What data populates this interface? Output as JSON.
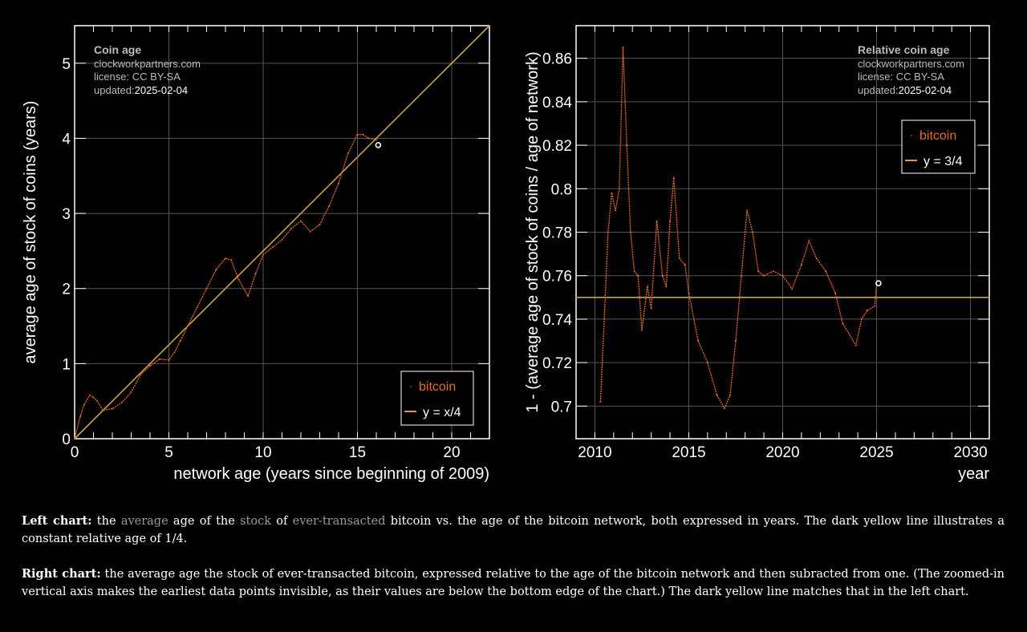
{
  "chart_data": [
    {
      "type": "line",
      "title": "Coin age",
      "annotation": {
        "site": "clockworkpartners.com",
        "license": "license: CC BY-SA",
        "updated_label": "updated:",
        "updated_value": "2025-02-04"
      },
      "xlabel": "network age (years since beginning of 2009)",
      "ylabel": "average age of stock of coins (years)",
      "xlim": [
        0,
        22
      ],
      "ylim": [
        0,
        5.5
      ],
      "xticks": [
        0,
        5,
        10,
        15,
        20
      ],
      "xtick_labels": [
        "0",
        "5",
        "10",
        "15",
        "20"
      ],
      "yticks": [
        0,
        1,
        2,
        3,
        4,
        5
      ],
      "ytick_labels": [
        "0",
        "1",
        "2",
        "3",
        "4",
        "5"
      ],
      "grid": true,
      "legend_position": "bottom-right",
      "series": [
        {
          "name": "bitcoin",
          "color": "#e8692a",
          "x": [
            0,
            0.3,
            0.5,
            0.8,
            1.0,
            1.2,
            1.5,
            2.0,
            2.5,
            3.0,
            3.5,
            4.0,
            4.5,
            5.0,
            5.3,
            5.6,
            6.0,
            6.5,
            7.0,
            7.5,
            8.0,
            8.3,
            8.7,
            9.2,
            9.6,
            10.0,
            10.5,
            11.0,
            11.5,
            12.0,
            12.5,
            13.0,
            13.5,
            14.0,
            14.5,
            15.0,
            15.3,
            15.6,
            16.0
          ],
          "y": [
            0,
            0.3,
            0.45,
            0.58,
            0.55,
            0.5,
            0.38,
            0.4,
            0.48,
            0.62,
            0.85,
            0.97,
            1.06,
            1.05,
            1.15,
            1.3,
            1.5,
            1.75,
            2.0,
            2.25,
            2.4,
            2.38,
            2.12,
            1.9,
            2.2,
            2.45,
            2.55,
            2.65,
            2.8,
            2.9,
            2.76,
            2.85,
            3.1,
            3.4,
            3.8,
            4.05,
            4.05,
            4.0,
            3.98
          ]
        },
        {
          "name": "y = x/4",
          "color": "#c9a24e",
          "x": [
            0,
            22
          ],
          "y": [
            0,
            5.5
          ]
        }
      ],
      "last_point": {
        "x": 16.1,
        "y": 3.91
      }
    },
    {
      "type": "line",
      "title": "Relative coin age",
      "annotation": {
        "site": "clockworkpartners.com",
        "license": "license: CC BY-SA",
        "updated_label": "updated:",
        "updated_value": "2025-02-04"
      },
      "xlabel": "year",
      "ylabel": "1 - (average age of stock of coins / age of network)",
      "xlim": [
        2009,
        2031
      ],
      "ylim": [
        0.685,
        0.875
      ],
      "xticks": [
        2010,
        2015,
        2020,
        2025,
        2030
      ],
      "xtick_labels": [
        "2010",
        "2015",
        "2020",
        "2025",
        "2030"
      ],
      "yticks": [
        0.7,
        0.72,
        0.74,
        0.76,
        0.78,
        0.8,
        0.82,
        0.84,
        0.86
      ],
      "ytick_labels": [
        "0.7",
        "0.72",
        "0.74",
        "0.76",
        "0.78",
        "0.8",
        "0.82",
        "0.84",
        "0.86"
      ],
      "grid": true,
      "legend_position": "top-right",
      "series": [
        {
          "name": "bitcoin",
          "color": "#e8692a",
          "x": [
            2010.3,
            2010.5,
            2010.7,
            2010.9,
            2011.1,
            2011.3,
            2011.5,
            2011.7,
            2011.9,
            2012.1,
            2012.3,
            2012.5,
            2012.8,
            2013.0,
            2013.3,
            2013.6,
            2013.8,
            2014.0,
            2014.2,
            2014.5,
            2014.8,
            2015.0,
            2015.5,
            2016.0,
            2016.5,
            2016.9,
            2017.2,
            2017.5,
            2017.8,
            2018.1,
            2018.4,
            2018.7,
            2019.0,
            2019.5,
            2020.0,
            2020.5,
            2021.0,
            2021.4,
            2021.8,
            2022.3,
            2022.8,
            2023.2,
            2023.9,
            2024.2,
            2024.5,
            2024.9,
            2025.0
          ],
          "y": [
            0.702,
            0.74,
            0.78,
            0.798,
            0.79,
            0.8,
            0.865,
            0.82,
            0.78,
            0.762,
            0.76,
            0.735,
            0.755,
            0.745,
            0.785,
            0.76,
            0.755,
            0.785,
            0.805,
            0.768,
            0.765,
            0.752,
            0.73,
            0.72,
            0.705,
            0.699,
            0.705,
            0.73,
            0.76,
            0.79,
            0.78,
            0.762,
            0.76,
            0.762,
            0.76,
            0.754,
            0.765,
            0.776,
            0.768,
            0.762,
            0.752,
            0.738,
            0.728,
            0.74,
            0.744,
            0.746,
            0.756
          ]
        },
        {
          "name": "y = 3/4",
          "color": "#c9a24e",
          "x": [
            2009,
            2031
          ],
          "y": [
            0.75,
            0.75
          ]
        }
      ],
      "last_point": {
        "x": 2025.1,
        "y": 0.7565
      }
    }
  ],
  "captions": {
    "left": {
      "head": "Left chart:",
      "t1": " the ",
      "l1": "average",
      "t2": " age of the ",
      "l2": "stock",
      "t3": " of ",
      "l3": "ever-transacted",
      "t4": " bitcoin vs. the age of the bitcoin network, both expressed in years. The dark yellow line illustrates a constant relative age of 1/4."
    },
    "right": {
      "head": "Right chart:",
      "body": " the average age the stock of ever-transacted bitcoin, expressed relative to the age of the bitcoin network and then subracted from one. (The zoomed-in vertical axis makes the earliest data points invisible, as their values are below the bottom edge of the chart.) The dark yellow line matches that in the left chart."
    }
  }
}
